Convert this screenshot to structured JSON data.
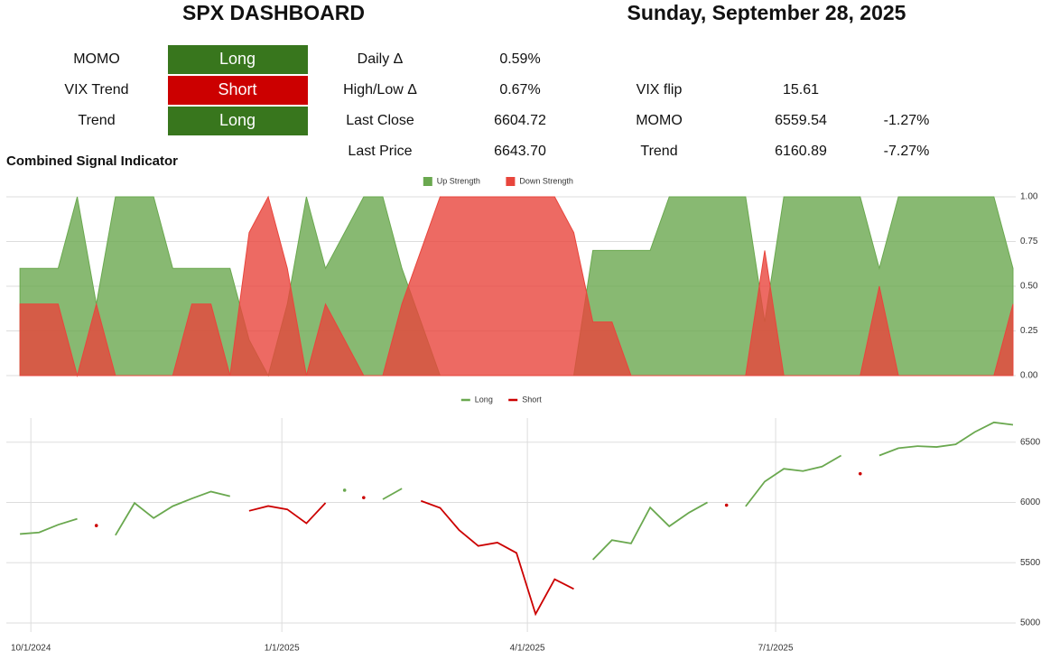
{
  "header": {
    "title": "SPX DASHBOARD",
    "date": "Sunday, September 28, 2025"
  },
  "signals": [
    {
      "label": "MOMO",
      "signal": "Long",
      "color": "#38761d"
    },
    {
      "label": "VIX Trend",
      "signal": "Short",
      "color": "#cc0000"
    },
    {
      "label": "Trend",
      "signal": "Long",
      "color": "#38761d"
    }
  ],
  "stats": [
    {
      "label": "Daily Δ",
      "value": "0.59%"
    },
    {
      "label": "High/Low Δ",
      "value": "0.67%"
    },
    {
      "label": "Last Close",
      "value": "6604.72"
    },
    {
      "label": "Last Price",
      "value": "6643.70"
    }
  ],
  "levels": [
    {
      "label": "VIX flip",
      "value": "15.61"
    },
    {
      "label": "MOMO",
      "value": "6559.54",
      "change": "-1.27%"
    },
    {
      "label": "Trend",
      "value": "6160.89",
      "change": "-7.27%"
    }
  ],
  "chart_data": [
    {
      "type": "area",
      "title": "Combined Signal Indicator",
      "x": [
        "2024-09-27",
        "2024-10-04",
        "2024-10-11",
        "2024-10-18",
        "2024-10-25",
        "2024-11-01",
        "2024-11-08",
        "2024-11-15",
        "2024-11-22",
        "2024-11-29",
        "2024-12-06",
        "2024-12-13",
        "2024-12-20",
        "2024-12-27",
        "2025-01-03",
        "2025-01-10",
        "2025-01-17",
        "2025-01-24",
        "2025-01-31",
        "2025-02-07",
        "2025-02-14",
        "2025-02-21",
        "2025-02-28",
        "2025-03-07",
        "2025-03-14",
        "2025-03-21",
        "2025-03-28",
        "2025-04-04",
        "2025-04-11",
        "2025-04-18",
        "2025-04-25",
        "2025-05-02",
        "2025-05-09",
        "2025-05-16",
        "2025-05-23",
        "2025-05-30",
        "2025-06-06",
        "2025-06-13",
        "2025-06-20",
        "2025-06-27",
        "2025-07-04",
        "2025-07-11",
        "2025-07-18",
        "2025-07-25",
        "2025-08-01",
        "2025-08-08",
        "2025-08-15",
        "2025-08-22",
        "2025-08-29",
        "2025-09-05",
        "2025-09-12",
        "2025-09-19",
        "2025-09-26"
      ],
      "series": [
        {
          "name": "Up Strength",
          "color": "#6aa84f",
          "values": [
            0.6,
            0.6,
            0.6,
            1,
            0.4,
            1,
            1,
            1,
            0.6,
            0.6,
            0.6,
            0.6,
            0.2,
            0,
            0.4,
            1,
            0.6,
            0.8,
            1,
            1,
            0.6,
            0.3,
            0,
            0,
            0,
            0,
            0,
            0,
            0,
            0,
            0.7,
            0.7,
            0.7,
            0.7,
            1,
            1,
            1,
            1,
            1,
            0.3,
            1,
            1,
            1,
            1,
            1,
            0.6,
            1,
            1,
            1,
            1,
            1,
            1,
            0.6
          ]
        },
        {
          "name": "Down Strength",
          "color": "#e8453c",
          "values": [
            0.4,
            0.4,
            0.4,
            0,
            0.4,
            0,
            0,
            0,
            0,
            0.4,
            0.4,
            0,
            0.8,
            1,
            0.6,
            0,
            0.4,
            0.2,
            0,
            0,
            0.4,
            0.7,
            1,
            1,
            1,
            1,
            1,
            1,
            1,
            0.8,
            0.3,
            0.3,
            0,
            0,
            0,
            0,
            0,
            0,
            0,
            0.7,
            0,
            0,
            0,
            0,
            0,
            0.5,
            0,
            0,
            0,
            0,
            0,
            0,
            0.4
          ]
        }
      ],
      "xlim": [
        "2024-09-22",
        "2025-09-27"
      ],
      "ylim": [
        0,
        1
      ],
      "yticks": [
        {
          "value": 0,
          "label": "0.00"
        },
        {
          "value": 0.25,
          "label": "0.25"
        },
        {
          "value": 0.5,
          "label": "0.50"
        },
        {
          "value": 0.75,
          "label": "0.75"
        },
        {
          "value": 1,
          "label": "1.00"
        }
      ],
      "grid": true,
      "legend": "top"
    },
    {
      "type": "line",
      "x": [
        "2024-09-27",
        "2024-10-04",
        "2024-10-11",
        "2024-10-18",
        "2024-10-25",
        "2024-11-01",
        "2024-11-08",
        "2024-11-15",
        "2024-11-22",
        "2024-11-29",
        "2024-12-06",
        "2024-12-13",
        "2024-12-20",
        "2024-12-27",
        "2025-01-03",
        "2025-01-10",
        "2025-01-17",
        "2025-01-24",
        "2025-01-31",
        "2025-02-07",
        "2025-02-14",
        "2025-02-21",
        "2025-02-28",
        "2025-03-07",
        "2025-03-14",
        "2025-03-21",
        "2025-03-28",
        "2025-04-04",
        "2025-04-11",
        "2025-04-18",
        "2025-04-25",
        "2025-05-02",
        "2025-05-09",
        "2025-05-16",
        "2025-05-23",
        "2025-05-30",
        "2025-06-06",
        "2025-06-13",
        "2025-06-20",
        "2025-06-27",
        "2025-07-04",
        "2025-07-11",
        "2025-07-18",
        "2025-07-25",
        "2025-08-01",
        "2025-08-08",
        "2025-08-15",
        "2025-08-22",
        "2025-08-29",
        "2025-09-05",
        "2025-09-12",
        "2025-09-19",
        "2025-09-26"
      ],
      "series": [
        {
          "name": "Long",
          "color": "#6aa84f",
          "values": [
            5738,
            5751,
            5815,
            5864,
            null,
            5728,
            5995,
            5870,
            5969,
            6032,
            6090,
            6051,
            null,
            null,
            null,
            null,
            null,
            6101,
            null,
            6026,
            6115,
            null,
            null,
            null,
            null,
            null,
            null,
            null,
            null,
            null,
            5525,
            5687,
            5660,
            5958,
            5802,
            5912,
            6000,
            null,
            5967,
            6173,
            6279,
            6260,
            6297,
            6389,
            null,
            6389,
            6450,
            6467,
            6460,
            6482,
            6584,
            6664,
            6644
          ]
        },
        {
          "name": "Short",
          "color": "#cc0000",
          "values": [
            null,
            null,
            null,
            null,
            5808,
            null,
            null,
            null,
            null,
            null,
            null,
            null,
            5930,
            5970,
            5942,
            5827,
            5996,
            null,
            6040,
            null,
            null,
            6013,
            5955,
            5770,
            5639,
            5667,
            5581,
            5074,
            5363,
            5282,
            null,
            null,
            null,
            null,
            null,
            null,
            null,
            5977,
            null,
            null,
            null,
            null,
            null,
            null,
            6238,
            null,
            null,
            null,
            null,
            null,
            null,
            null,
            null
          ]
        }
      ],
      "xlim": [
        "2024-09-22",
        "2025-09-27"
      ],
      "xticks": [
        {
          "value": "2024-10-01",
          "label": "10/1/2024"
        },
        {
          "value": "2025-01-01",
          "label": "1/1/2025"
        },
        {
          "value": "2025-04-01",
          "label": "4/1/2025"
        },
        {
          "value": "2025-07-01",
          "label": "7/1/2025"
        }
      ],
      "ylim": [
        4925,
        6700
      ],
      "yticks": [
        5000,
        5500,
        6000,
        6500
      ],
      "grid": true,
      "legend": "top"
    }
  ]
}
